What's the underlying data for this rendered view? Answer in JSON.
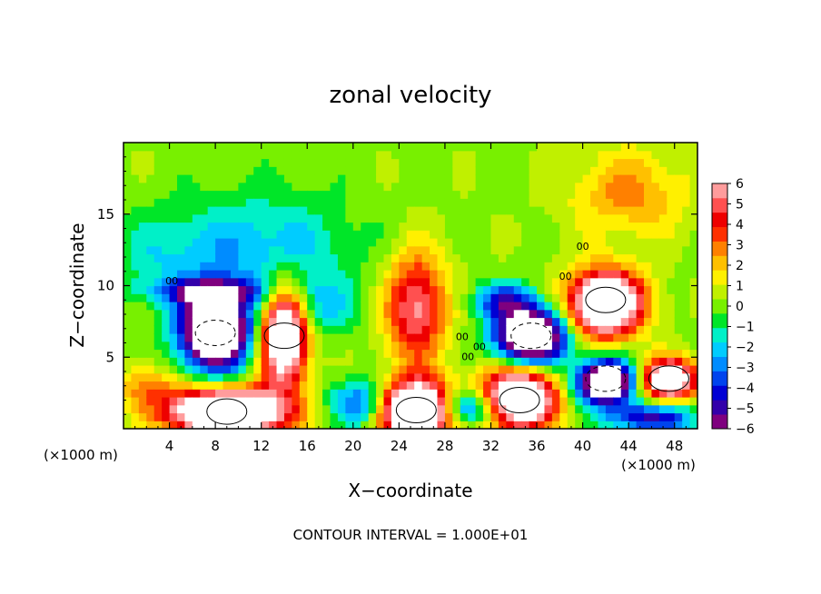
{
  "chart_data": {
    "type": "heatmap",
    "title": "zonal velocity",
    "xlabel": "X−coordinate",
    "ylabel": "Z−coordinate",
    "x_unit_label_left": "(×1000 m)",
    "x_unit_label_right": "(×1000 m)",
    "footer": "CONTOUR INTERVAL = 1.000E+01",
    "xlim": [
      0,
      50
    ],
    "ylim": [
      0,
      20
    ],
    "x_ticks": [
      4,
      8,
      12,
      16,
      20,
      24,
      28,
      32,
      36,
      40,
      44,
      48
    ],
    "x_tick_labels": [
      "4",
      "8",
      "12",
      "16",
      "20",
      "24",
      "28",
      "32",
      "36",
      "40",
      "44",
      "48"
    ],
    "y_ticks": [
      5,
      10,
      15
    ],
    "y_tick_labels": [
      "5",
      "10",
      "15"
    ],
    "colorbar": {
      "min": -6,
      "max": 6,
      "labels": [
        "6",
        "5",
        "4",
        "3",
        "2",
        "1",
        "0",
        "−1",
        "−2",
        "−3",
        "−4",
        "−5",
        "−6"
      ],
      "colors": [
        "#7f007f",
        "#3300aa",
        "#0000d4",
        "#0044ee",
        "#008cff",
        "#00ccff",
        "#00f0c8",
        "#00e628",
        "#78f000",
        "#c0f000",
        "#fff000",
        "#ffc000",
        "#ff8000",
        "#ff3000",
        "#ee0000",
        "#ff5050",
        "#ff9c9c"
      ]
    },
    "features": [
      {
        "kind": "negative_core",
        "x": 8,
        "z": 6.7,
        "value": "< -6"
      },
      {
        "kind": "positive_core",
        "x": 14,
        "z": 6.5,
        "value": "> 6"
      },
      {
        "kind": "positive_core",
        "x": 25.5,
        "z": 8,
        "value": "4 to 5"
      },
      {
        "kind": "negative_band",
        "x": 12,
        "z": 9.2,
        "value": "-5"
      },
      {
        "kind": "negative_core",
        "x": 35.5,
        "z": 6.5,
        "value": "< -6"
      },
      {
        "kind": "positive_core",
        "x": 42,
        "z": 9,
        "value": "> 6"
      },
      {
        "kind": "positive_core",
        "x": 9,
        "z": 1.2,
        "value": "> 6"
      },
      {
        "kind": "positive_core",
        "x": 25.5,
        "z": 1.3,
        "value": "> 6"
      },
      {
        "kind": "negative_core",
        "x": 42,
        "z": 3.5,
        "value": "< -6"
      },
      {
        "kind": "positive_core",
        "x": 47.5,
        "z": 3.5,
        "value": "> 6"
      },
      {
        "kind": "positive_core",
        "x": 34.5,
        "z": 2,
        "value": "> 6"
      }
    ],
    "contour_labels": [
      "00",
      "00",
      "00",
      "00",
      "00",
      "00"
    ],
    "grid": false
  }
}
